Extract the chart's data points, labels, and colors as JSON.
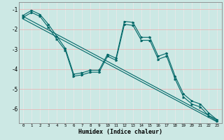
{
  "xlabel": "Humidex (Indice chaleur)",
  "background_color": "#cce8e4",
  "line_color": "#006868",
  "grid_color": "#e8e8e8",
  "xlim": [
    -0.5,
    23.5
  ],
  "ylim": [
    -6.7,
    -0.65
  ],
  "yticks": [
    -1,
    -2,
    -3,
    -4,
    -5,
    -6
  ],
  "xticks": [
    0,
    1,
    2,
    3,
    4,
    5,
    6,
    7,
    8,
    9,
    10,
    11,
    12,
    13,
    14,
    15,
    16,
    17,
    18,
    19,
    20,
    21,
    22,
    23
  ],
  "line1_x": [
    0,
    1,
    2,
    3,
    4,
    5,
    6,
    7,
    8,
    9,
    10,
    11,
    12,
    13,
    14,
    15,
    16,
    17,
    18,
    19,
    20,
    21,
    22,
    23
  ],
  "line1_y": [
    -1.3,
    -1.05,
    -1.25,
    -1.75,
    -2.35,
    -2.95,
    -4.25,
    -4.18,
    -4.05,
    -4.05,
    -3.25,
    -3.45,
    -1.6,
    -1.65,
    -2.4,
    -2.4,
    -3.35,
    -3.2,
    -4.35,
    -5.25,
    -5.6,
    -5.75,
    -6.2,
    -6.55
  ],
  "line2_x": [
    0,
    1,
    2,
    3,
    4,
    5,
    6,
    7,
    8,
    9,
    10,
    11,
    12,
    13,
    14,
    15,
    16,
    17,
    18,
    19,
    20,
    21,
    22,
    23
  ],
  "line2_y": [
    -1.4,
    -1.15,
    -1.35,
    -1.9,
    -2.5,
    -3.05,
    -4.35,
    -4.28,
    -4.15,
    -4.15,
    -3.35,
    -3.55,
    -1.75,
    -1.8,
    -2.55,
    -2.55,
    -3.5,
    -3.35,
    -4.5,
    -5.4,
    -5.75,
    -5.9,
    -6.35,
    -6.62
  ],
  "line3_x": [
    0,
    23
  ],
  "line3_y": [
    -1.35,
    -6.55
  ],
  "line4_x": [
    0,
    23
  ],
  "line4_y": [
    -1.48,
    -6.65
  ]
}
